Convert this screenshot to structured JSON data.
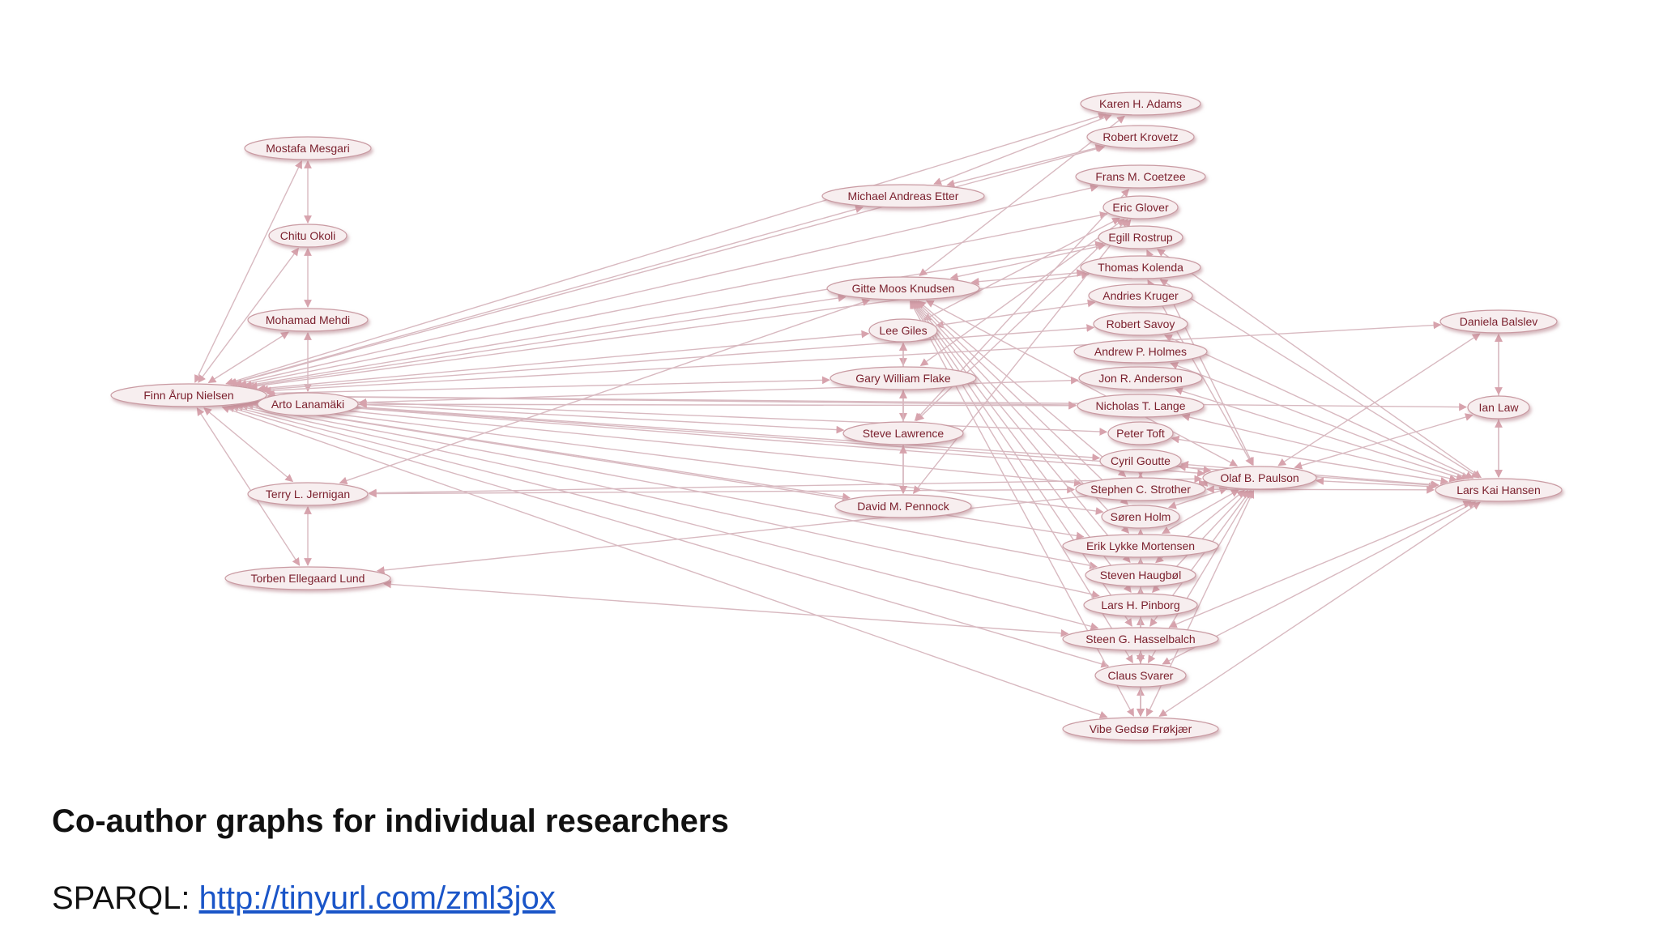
{
  "slide": {
    "title": "Co-author graphs for individual researchers",
    "sparql_label": "SPARQL:",
    "sparql_link": "http://tinyurl.com/zml3jox"
  },
  "colors": {
    "edge": "#d8b9c0",
    "node_fill": "#f7eeef",
    "node_stroke": "#c99aa2",
    "node_text": "#7a1f2c",
    "link": "#1a55c8"
  },
  "graph": {
    "nodes": [
      {
        "id": "finn",
        "label": "Finn Årup Nielsen"
      },
      {
        "id": "mesgari",
        "label": "Mostafa Mesgari"
      },
      {
        "id": "okoli",
        "label": "Chitu Okoli"
      },
      {
        "id": "mehdi",
        "label": "Mohamad Mehdi"
      },
      {
        "id": "lanamaki",
        "label": "Arto Lanamäki"
      },
      {
        "id": "jernigan",
        "label": "Terry L. Jernigan"
      },
      {
        "id": "lund",
        "label": "Torben Ellegaard Lund"
      },
      {
        "id": "etter",
        "label": "Michael Andreas Etter"
      },
      {
        "id": "knudsen",
        "label": "Gitte Moos Knudsen"
      },
      {
        "id": "giles",
        "label": "Lee Giles"
      },
      {
        "id": "flake",
        "label": "Gary William Flake"
      },
      {
        "id": "lawrence",
        "label": "Steve Lawrence"
      },
      {
        "id": "pennock",
        "label": "David M. Pennock"
      },
      {
        "id": "adams",
        "label": "Karen H. Adams"
      },
      {
        "id": "krovetz",
        "label": "Robert Krovetz"
      },
      {
        "id": "coetzee",
        "label": "Frans M. Coetzee"
      },
      {
        "id": "glover",
        "label": "Eric Glover"
      },
      {
        "id": "rostrup",
        "label": "Egill Rostrup"
      },
      {
        "id": "kolenda",
        "label": "Thomas Kolenda"
      },
      {
        "id": "kruger",
        "label": "Andries Kruger"
      },
      {
        "id": "savoy",
        "label": "Robert Savoy"
      },
      {
        "id": "holmes",
        "label": "Andrew P. Holmes"
      },
      {
        "id": "anderson",
        "label": "Jon R. Anderson"
      },
      {
        "id": "lange",
        "label": "Nicholas T. Lange"
      },
      {
        "id": "toft",
        "label": "Peter Toft"
      },
      {
        "id": "goutte",
        "label": "Cyril Goutte"
      },
      {
        "id": "strother",
        "label": "Stephen C. Strother"
      },
      {
        "id": "holm",
        "label": "Søren Holm"
      },
      {
        "id": "mortensen",
        "label": "Erik Lykke Mortensen"
      },
      {
        "id": "haugbol",
        "label": "Steven Haugbøl"
      },
      {
        "id": "pinborg",
        "label": "Lars H. Pinborg"
      },
      {
        "id": "hasselbalch",
        "label": "Steen G. Hasselbalch"
      },
      {
        "id": "svarer",
        "label": "Claus Svarer"
      },
      {
        "id": "frokjaer",
        "label": "Vibe Gedsø Frøkjær"
      },
      {
        "id": "paulson",
        "label": "Olaf B. Paulson"
      },
      {
        "id": "balslev",
        "label": "Daniela Balslev"
      },
      {
        "id": "law",
        "label": "Ian Law"
      },
      {
        "id": "hansen",
        "label": "Lars Kai Hansen"
      }
    ]
  }
}
